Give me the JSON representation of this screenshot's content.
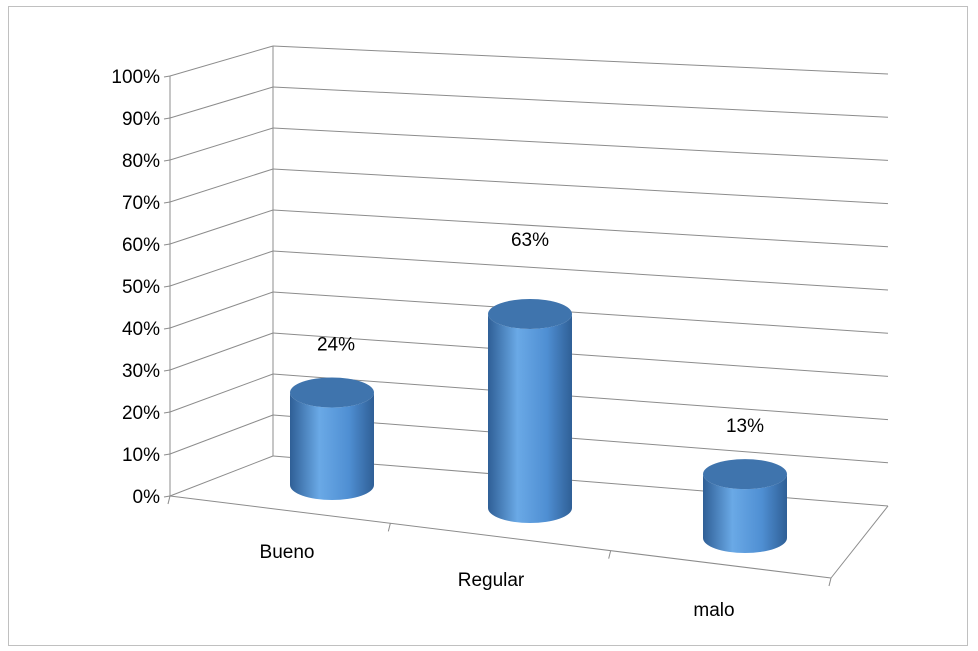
{
  "chart_data": {
    "type": "bar",
    "style": "3d-cylinder",
    "categories": [
      "Bueno",
      "Regular",
      "malo"
    ],
    "values": [
      24,
      63,
      13
    ],
    "data_labels": [
      "24%",
      "63%",
      "13%"
    ],
    "value_unit": "%",
    "ylim": [
      0,
      100
    ],
    "yticks": [
      "0%",
      "10%",
      "20%",
      "30%",
      "40%",
      "50%",
      "60%",
      "70%",
      "80%",
      "90%",
      "100%"
    ],
    "grid": true,
    "legend": false,
    "title": "",
    "xlabel": "",
    "ylabel": "",
    "colors": {
      "bar_top": "#3f74ad",
      "bar_body_light": "#6aa9e6",
      "bar_body_mid": "#4f8fd3",
      "bar_body_dark": "#2f5f96",
      "grid": "#8c8c8c",
      "frame": "#c0c0c0"
    }
  }
}
